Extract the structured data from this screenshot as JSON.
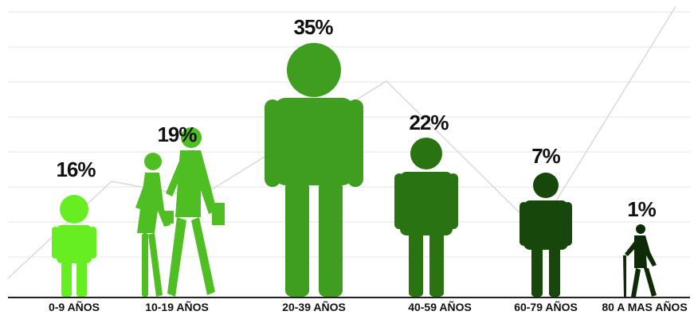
{
  "chart_data": {
    "type": "bar",
    "categories": [
      "0-9 AÑOS",
      "10-19 AÑOS",
      "20-39 AÑOS",
      "40-59 AÑOS",
      "60-79 AÑOS",
      "80 A MAS AÑOS"
    ],
    "values": [
      16,
      19,
      35,
      22,
      7,
      1
    ],
    "value_labels": [
      "16%",
      "19%",
      "35%",
      "22%",
      "7%",
      "1%"
    ],
    "unit": "%",
    "ylim": [
      0,
      35
    ],
    "grid": true,
    "bar_style": "pictogram (human figures)",
    "colors": [
      "#66ee22",
      "#4fbe22",
      "#3f9e1f",
      "#2a7312",
      "#17470b",
      "#0d2b06"
    ]
  }
}
